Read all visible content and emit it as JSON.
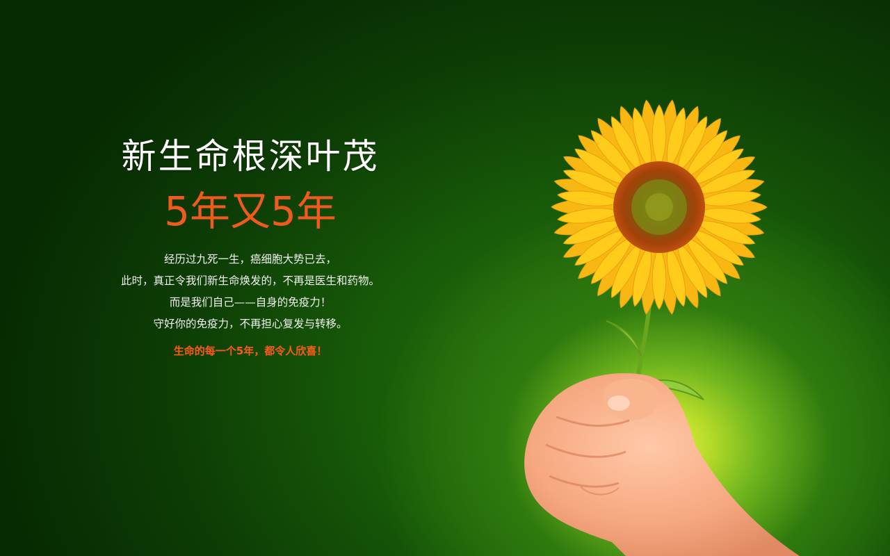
{
  "headline": "新生命根深叶茂",
  "subheadline": "5年又5年",
  "body_lines": [
    "经历过九死一生，癌细胞大势已去，",
    "此时，真正令我们新生命焕发的，不再是医生和药物。",
    "而是我们自己——自身的免疫力！",
    "守好你的免疫力，不再担心复发与转移。"
  ],
  "highlight": "生命的每一个5年，都令人欣喜！",
  "colors": {
    "background_dark": "#062a02",
    "background_glow": "#e2f03a",
    "headline": "#ffffff",
    "accent": "#f05a1c"
  }
}
